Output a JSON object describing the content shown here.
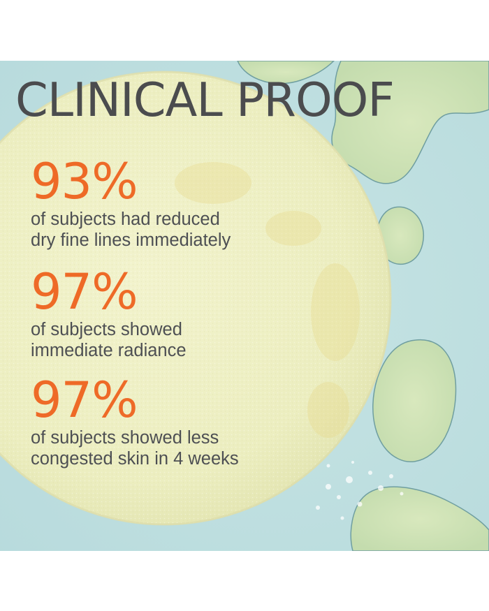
{
  "headline": "CLINICAL PROOF",
  "colors": {
    "background_blue": "#bfe0e1",
    "pad_yellow": "#eef0c3",
    "accent_orange": "#ee6a27",
    "headline_gray": "#4b4c4e",
    "body_gray": "#4d4f53",
    "oil_green": "#cfe2b4"
  },
  "stats": [
    {
      "value": "93%",
      "lines": [
        "of subjects had reduced",
        "dry fine lines immediately"
      ]
    },
    {
      "value": "97%",
      "lines": [
        "of subjects showed",
        "immediate radiance"
      ]
    },
    {
      "value": "97%",
      "lines": [
        "of subjects showed less",
        "congested skin in 4 weeks"
      ]
    }
  ]
}
